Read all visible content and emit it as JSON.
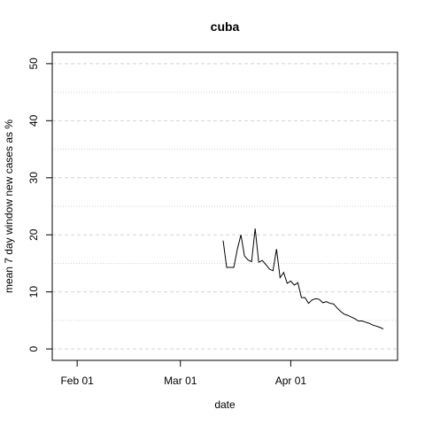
{
  "chart_data": {
    "type": "line",
    "title": "cuba",
    "xlabel": "date",
    "ylabel": "mean  7  day window new cases as %",
    "x_ticks": [
      "2020-02-01",
      "2020-03-01",
      "2020-04-01"
    ],
    "x_tick_labels": [
      "Feb 01",
      "Mar 01",
      "Apr 01"
    ],
    "y_ticks": [
      0,
      10,
      20,
      30,
      40,
      50
    ],
    "y_tick_labels": [
      "0",
      "10",
      "20",
      "30",
      "40",
      "50"
    ],
    "xlim": [
      "2020-01-25",
      "2020-05-01"
    ],
    "ylim": [
      -2,
      52
    ],
    "grid": "horizontal dashed at major and minor (every 5) y values",
    "colors": {
      "line": "#000000",
      "grid": "#d3d3d3",
      "frame": "#000000"
    },
    "series": [
      {
        "x": [
          "2020-03-13",
          "2020-03-14",
          "2020-03-15",
          "2020-03-16",
          "2020-03-17",
          "2020-03-18",
          "2020-03-19",
          "2020-03-20",
          "2020-03-21",
          "2020-03-22",
          "2020-03-23",
          "2020-03-24",
          "2020-03-25",
          "2020-03-26",
          "2020-03-27",
          "2020-03-28",
          "2020-03-29",
          "2020-03-30",
          "2020-03-31",
          "2020-04-01",
          "2020-04-02",
          "2020-04-03",
          "2020-04-04",
          "2020-04-05",
          "2020-04-06",
          "2020-04-07",
          "2020-04-08",
          "2020-04-09",
          "2020-04-10",
          "2020-04-11",
          "2020-04-12",
          "2020-04-13",
          "2020-04-14",
          "2020-04-15",
          "2020-04-16",
          "2020-04-17",
          "2020-04-18",
          "2020-04-19",
          "2020-04-20",
          "2020-04-21",
          "2020-04-22",
          "2020-04-23",
          "2020-04-24",
          "2020-04-25",
          "2020-04-26",
          "2020-04-27"
        ],
        "values": [
          19,
          14.3,
          14.3,
          14.3,
          17.5,
          20,
          16.3,
          15.6,
          15.3,
          21.1,
          15.2,
          15.5,
          14.8,
          14,
          13.7,
          17.5,
          12.5,
          13.4,
          11.5,
          11.9,
          11.2,
          11.6,
          9,
          9,
          8,
          8.6,
          8.8,
          8.7,
          8.1,
          8.3,
          8,
          7.9,
          7.2,
          6.6,
          6.1,
          5.9,
          5.6,
          5.3,
          4.9,
          4.9,
          4.7,
          4.5,
          4.2,
          4,
          3.8,
          3.5
        ]
      }
    ]
  }
}
